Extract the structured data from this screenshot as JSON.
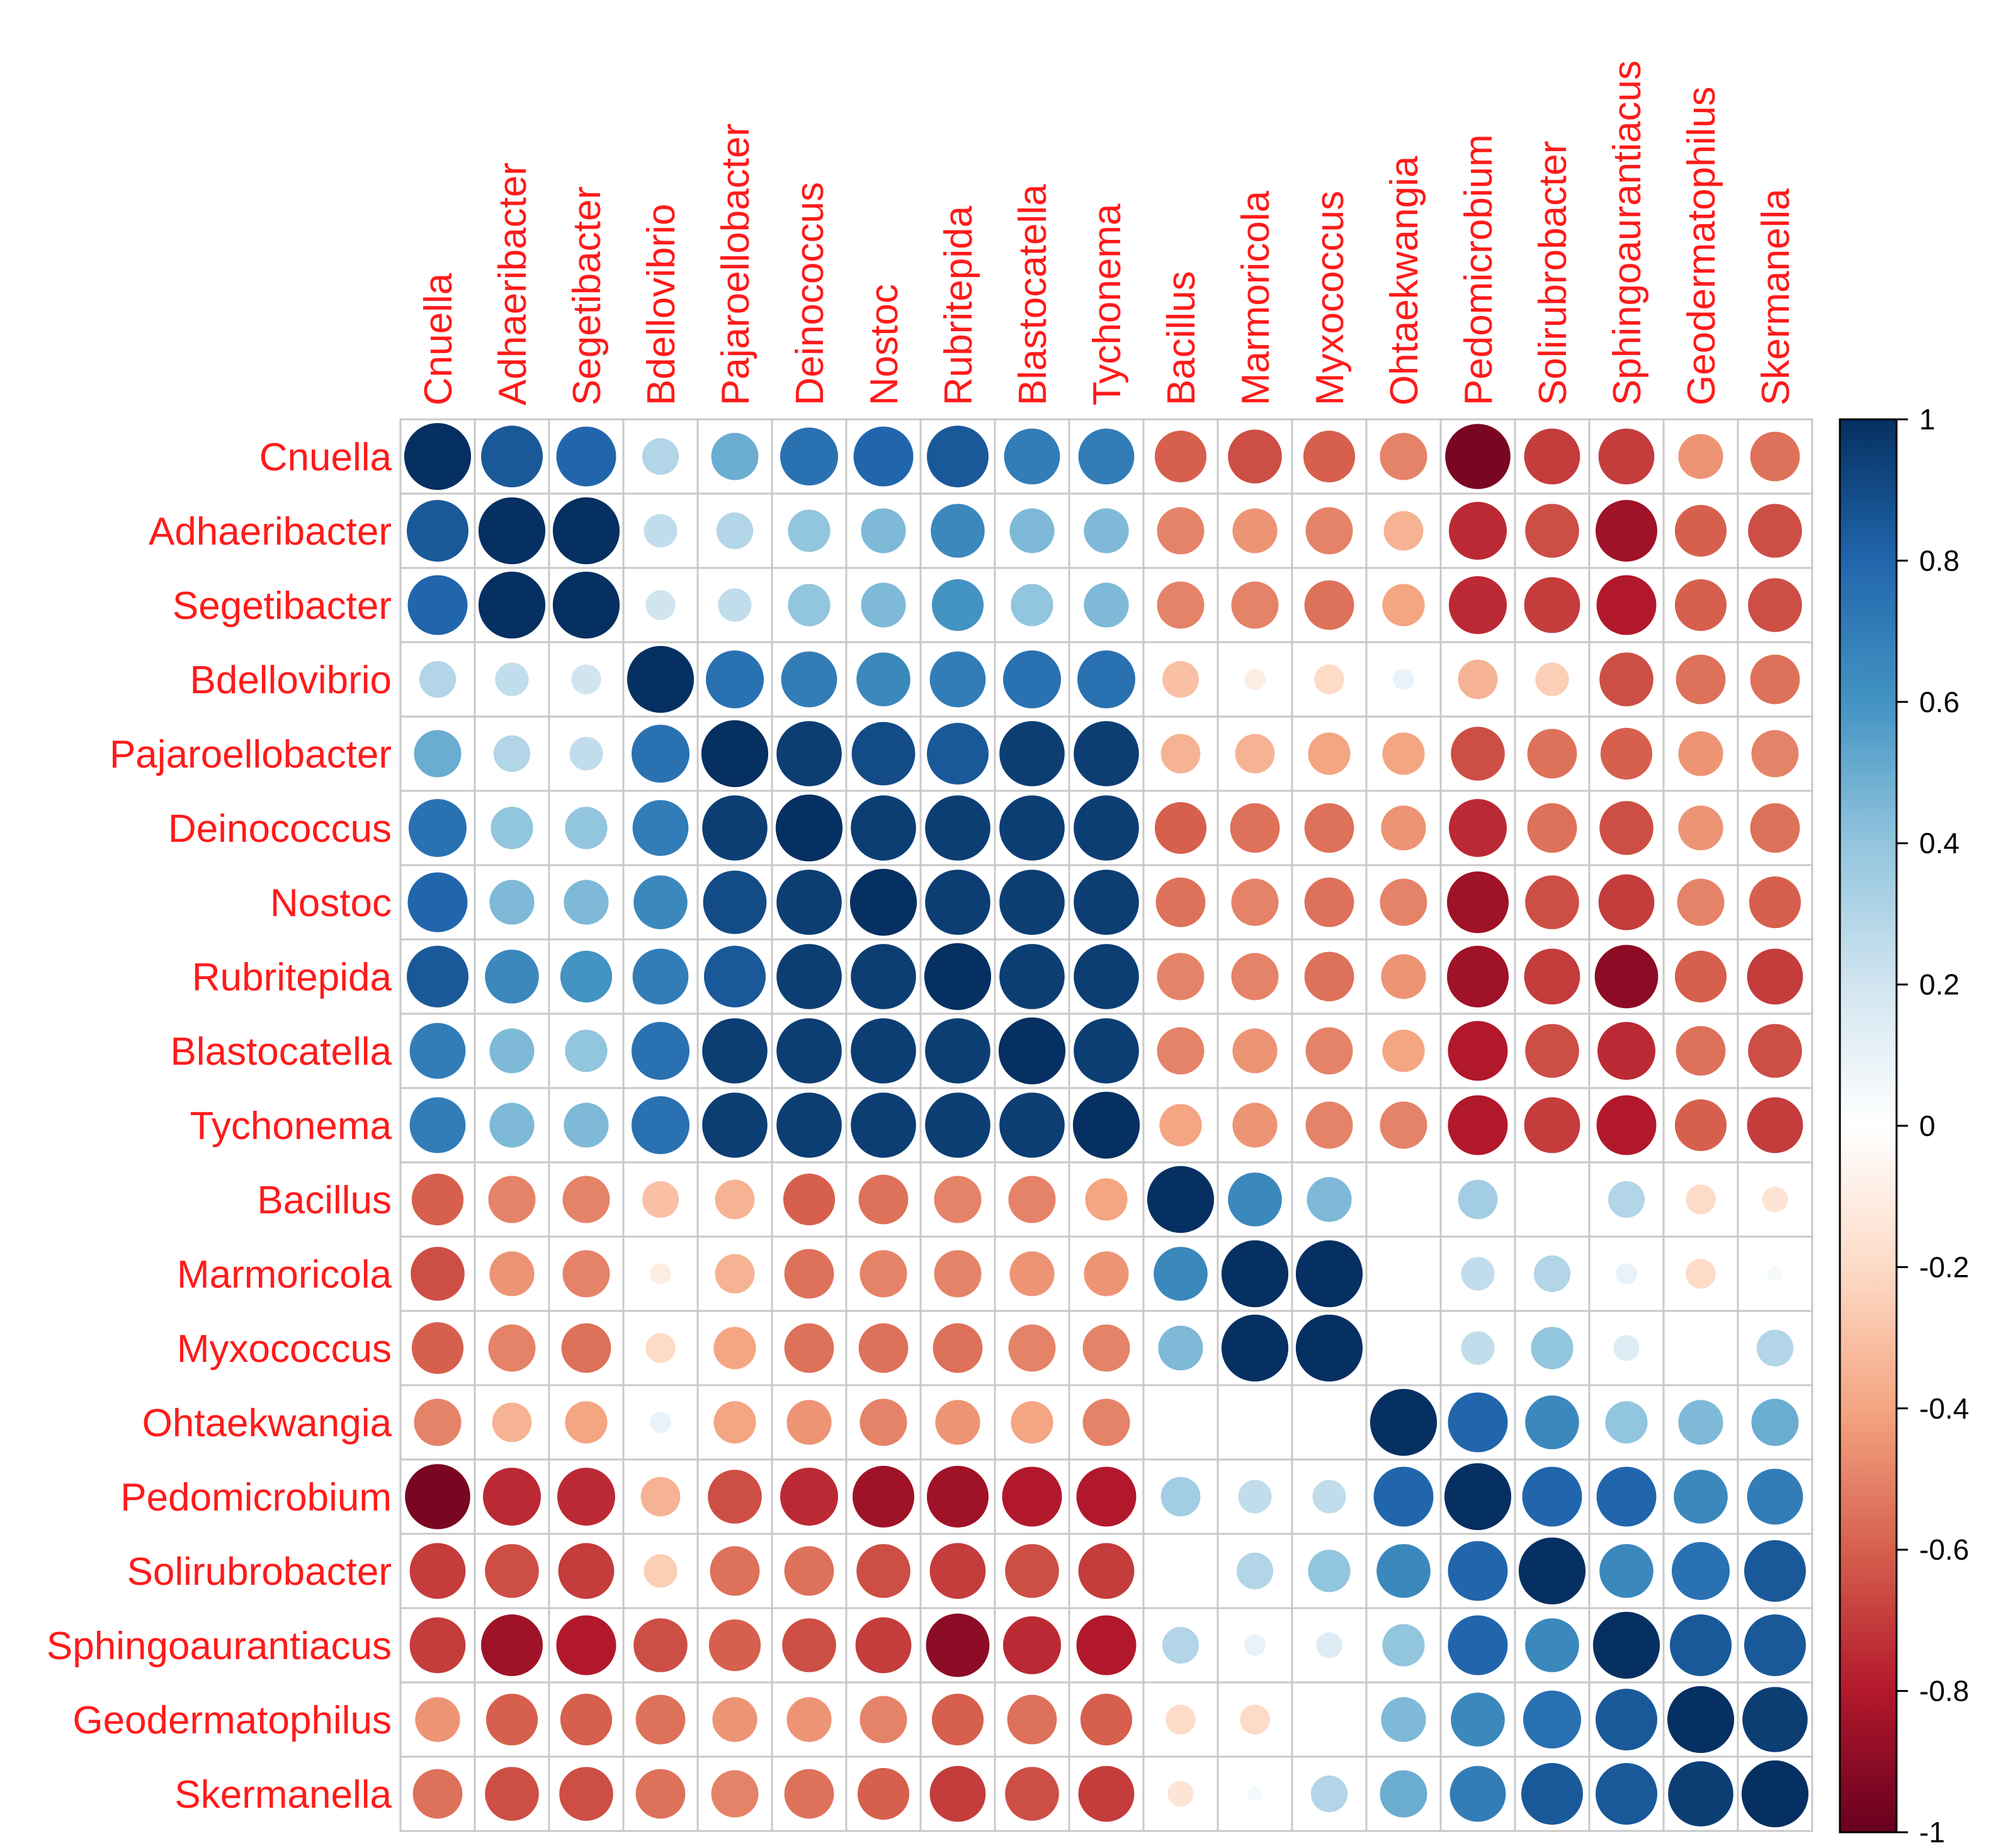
{
  "chart_data": {
    "type": "heatmap",
    "style": "circle-correlation-matrix",
    "title": "",
    "xlabel": "",
    "ylabel": "",
    "labels": [
      "Cnuella",
      "Adhaeribacter",
      "Segetibacter",
      "Bdellovibrio",
      "Pajaroellobacter",
      "Deinococcus",
      "Nostoc",
      "Rubritepida",
      "Blastocatella",
      "Tychonema",
      "Bacillus",
      "Marmoricola",
      "Myxococcus",
      "Ohtaekwangia",
      "Pedomicrobium",
      "Solirubrobacter",
      "Sphingoaurantiacus",
      "Geodermatophilus",
      "Skermanella"
    ],
    "values": [
      [
        1.0,
        0.85,
        0.8,
        0.3,
        0.5,
        0.75,
        0.8,
        0.85,
        0.7,
        0.7,
        -0.6,
        -0.65,
        -0.6,
        -0.5,
        -0.95,
        -0.7,
        -0.7,
        -0.45,
        -0.55
      ],
      [
        0.85,
        1.0,
        1.0,
        0.25,
        0.3,
        0.4,
        0.45,
        0.65,
        0.45,
        0.45,
        -0.5,
        -0.45,
        -0.5,
        -0.35,
        -0.75,
        -0.65,
        -0.85,
        -0.6,
        -0.65
      ],
      [
        0.8,
        1.0,
        1.0,
        0.2,
        0.25,
        0.4,
        0.45,
        0.6,
        0.4,
        0.45,
        -0.5,
        -0.5,
        -0.55,
        -0.4,
        -0.75,
        -0.7,
        -0.8,
        -0.6,
        -0.65
      ],
      [
        0.3,
        0.25,
        0.2,
        1.0,
        0.75,
        0.7,
        0.65,
        0.7,
        0.75,
        0.75,
        -0.3,
        -0.1,
        -0.2,
        0.1,
        -0.35,
        -0.25,
        -0.65,
        -0.55,
        -0.55
      ],
      [
        0.5,
        0.3,
        0.25,
        0.75,
        1.0,
        0.95,
        0.9,
        0.85,
        0.95,
        0.95,
        -0.35,
        -0.35,
        -0.4,
        -0.4,
        -0.65,
        -0.55,
        -0.6,
        -0.45,
        -0.5
      ],
      [
        0.75,
        0.4,
        0.4,
        0.7,
        0.95,
        1.0,
        0.95,
        0.95,
        0.95,
        0.95,
        -0.6,
        -0.55,
        -0.55,
        -0.45,
        -0.75,
        -0.55,
        -0.65,
        -0.45,
        -0.55
      ],
      [
        0.8,
        0.45,
        0.45,
        0.65,
        0.9,
        0.95,
        1.0,
        0.95,
        0.95,
        0.95,
        -0.55,
        -0.5,
        -0.55,
        -0.5,
        -0.85,
        -0.65,
        -0.7,
        -0.5,
        -0.6
      ],
      [
        0.85,
        0.65,
        0.6,
        0.7,
        0.85,
        0.95,
        0.95,
        1.0,
        0.95,
        0.95,
        -0.5,
        -0.5,
        -0.55,
        -0.45,
        -0.85,
        -0.7,
        -0.9,
        -0.6,
        -0.7
      ],
      [
        0.7,
        0.45,
        0.4,
        0.75,
        0.95,
        0.95,
        0.95,
        0.95,
        1.0,
        0.95,
        -0.5,
        -0.45,
        -0.5,
        -0.4,
        -0.8,
        -0.65,
        -0.75,
        -0.55,
        -0.65
      ],
      [
        0.7,
        0.45,
        0.45,
        0.75,
        0.95,
        0.95,
        0.95,
        0.95,
        0.95,
        1.0,
        -0.4,
        -0.45,
        -0.5,
        -0.5,
        -0.8,
        -0.7,
        -0.8,
        -0.6,
        -0.7
      ],
      [
        -0.6,
        -0.5,
        -0.5,
        -0.3,
        -0.35,
        -0.6,
        -0.55,
        -0.5,
        -0.5,
        -0.4,
        1.0,
        0.65,
        0.45,
        0.0,
        0.35,
        0.0,
        0.3,
        -0.2,
        -0.15
      ],
      [
        -0.65,
        -0.45,
        -0.5,
        -0.1,
        -0.35,
        -0.55,
        -0.5,
        -0.5,
        -0.45,
        -0.45,
        0.65,
        1.0,
        1.0,
        0.0,
        0.25,
        0.3,
        0.1,
        -0.2,
        0.05
      ],
      [
        -0.6,
        -0.5,
        -0.55,
        -0.2,
        -0.4,
        -0.55,
        -0.55,
        -0.55,
        -0.5,
        -0.5,
        0.45,
        1.0,
        1.0,
        0.0,
        0.25,
        0.4,
        0.15,
        0.0,
        0.3
      ],
      [
        -0.5,
        -0.35,
        -0.4,
        0.1,
        -0.4,
        -0.45,
        -0.5,
        -0.45,
        -0.4,
        -0.5,
        0.0,
        0.0,
        0.0,
        1.0,
        0.8,
        0.65,
        0.4,
        0.45,
        0.5
      ],
      [
        -0.95,
        -0.75,
        -0.75,
        -0.35,
        -0.65,
        -0.75,
        -0.85,
        -0.85,
        -0.8,
        -0.8,
        0.35,
        0.25,
        0.25,
        0.8,
        1.0,
        0.8,
        0.8,
        0.65,
        0.7
      ],
      [
        -0.7,
        -0.65,
        -0.7,
        -0.25,
        -0.55,
        -0.55,
        -0.65,
        -0.7,
        -0.65,
        -0.7,
        0.0,
        0.3,
        0.4,
        0.65,
        0.8,
        1.0,
        0.65,
        0.75,
        0.85
      ],
      [
        -0.7,
        -0.85,
        -0.8,
        -0.65,
        -0.6,
        -0.65,
        -0.7,
        -0.9,
        -0.75,
        -0.8,
        0.3,
        0.1,
        0.15,
        0.4,
        0.8,
        0.65,
        1.0,
        0.85,
        0.85
      ],
      [
        -0.45,
        -0.6,
        -0.6,
        -0.55,
        -0.45,
        -0.45,
        -0.5,
        -0.6,
        -0.55,
        -0.6,
        -0.2,
        -0.2,
        0.0,
        0.45,
        0.65,
        0.75,
        0.85,
        1.0,
        0.95
      ],
      [
        -0.55,
        -0.65,
        -0.65,
        -0.55,
        -0.5,
        -0.55,
        -0.6,
        -0.7,
        -0.65,
        -0.7,
        -0.15,
        0.05,
        0.3,
        0.5,
        0.7,
        0.85,
        0.85,
        0.95,
        1.0
      ]
    ],
    "color_scale": {
      "min": -1,
      "max": 1,
      "ticks": [
        "1",
        "0.8",
        "0.6",
        "0.4",
        "0.2",
        "0",
        "-0.2",
        "-0.4",
        "-0.6",
        "-0.8",
        "-1"
      ],
      "tick_values": [
        1,
        0.8,
        0.6,
        0.4,
        0.2,
        0,
        -0.2,
        -0.4,
        -0.6,
        -0.8,
        -1
      ],
      "stops": [
        "#67001f",
        "#b2182b",
        "#d6604d",
        "#f4a582",
        "#fddbc7",
        "#ffffff",
        "#d1e5f0",
        "#92c5de",
        "#4393c3",
        "#2166ac",
        "#053061"
      ]
    },
    "label_color": "#ff1a1a",
    "grid_color": "#c8c8c8"
  }
}
